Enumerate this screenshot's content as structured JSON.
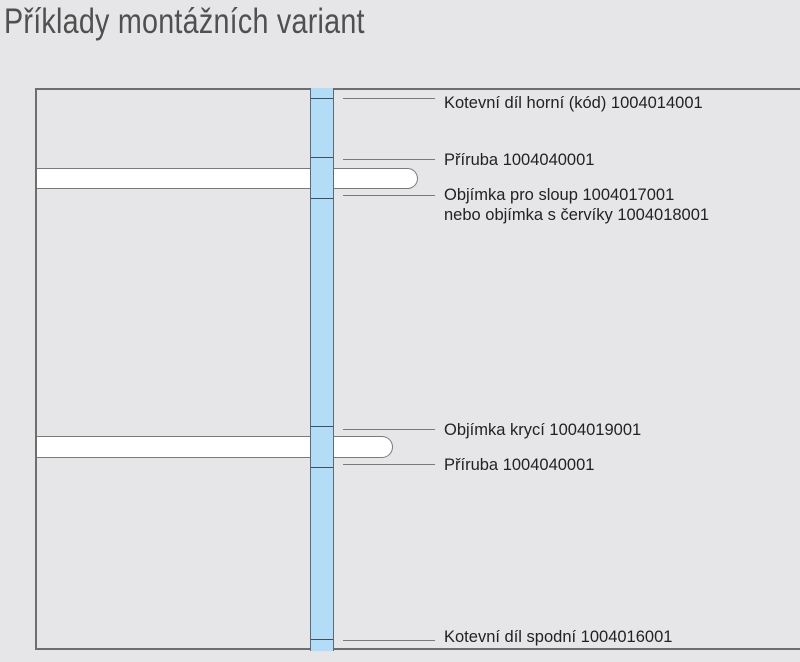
{
  "title": "Příklady montážních variant",
  "colors": {
    "pole": "#b3dcf7",
    "background": "#e6e6e8",
    "bar": "#ffffff"
  },
  "labels": [
    {
      "lines": [
        "Kotevní díl horní (kód) 1004014001"
      ]
    },
    {
      "lines": [
        "Příruba 1004040001"
      ]
    },
    {
      "lines": [
        "Objímka pro sloup 1004017001",
        "nebo objímka s červíky 1004018001"
      ]
    },
    {
      "lines": [
        "Objímka krycí 1004019001"
      ]
    },
    {
      "lines": [
        "Příruba 1004040001"
      ]
    },
    {
      "lines": [
        "Kotevní díl spodní 1004016001"
      ]
    }
  ]
}
